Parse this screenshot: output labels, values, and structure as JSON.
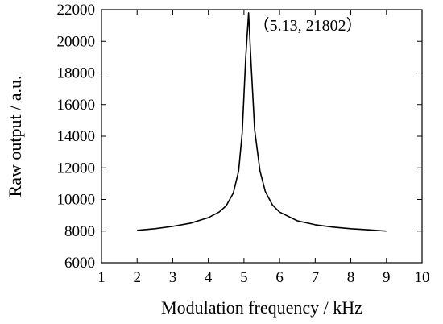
{
  "chart_data": {
    "type": "line",
    "xlabel": "Modulation frequency / kHz",
    "ylabel": "Raw output / a.u.",
    "xlim": [
      1,
      10
    ],
    "ylim": [
      6000,
      22000
    ],
    "xticks": [
      1,
      2,
      3,
      4,
      5,
      6,
      7,
      8,
      9,
      10
    ],
    "yticks": [
      6000,
      8000,
      10000,
      12000,
      14000,
      16000,
      18000,
      20000,
      22000
    ],
    "xtick_labels": [
      "1",
      "2",
      "3",
      "4",
      "5",
      "6",
      "7",
      "8",
      "9",
      "10"
    ],
    "ytick_labels": [
      "6000",
      "8000",
      "10000",
      "12000",
      "14000",
      "16000",
      "18000",
      "20000",
      "22000"
    ],
    "grid": false,
    "series": [
      {
        "color": "#000000",
        "x": [
          2.0,
          2.5,
          3.0,
          3.5,
          4.0,
          4.3,
          4.5,
          4.7,
          4.85,
          4.95,
          5.05,
          5.13,
          5.2,
          5.3,
          5.45,
          5.6,
          5.8,
          6.0,
          6.5,
          7.0,
          7.5,
          8.0,
          8.5,
          9.0
        ],
        "y": [
          8050,
          8150,
          8300,
          8500,
          8850,
          9200,
          9600,
          10400,
          11800,
          14200,
          19000,
          21802,
          18600,
          14400,
          11800,
          10500,
          9650,
          9200,
          8650,
          8400,
          8250,
          8150,
          8080,
          8000
        ]
      }
    ],
    "annotations": [
      {
        "text": "（5.13, 21802）",
        "x": 5.13,
        "y": 21802
      }
    ]
  }
}
